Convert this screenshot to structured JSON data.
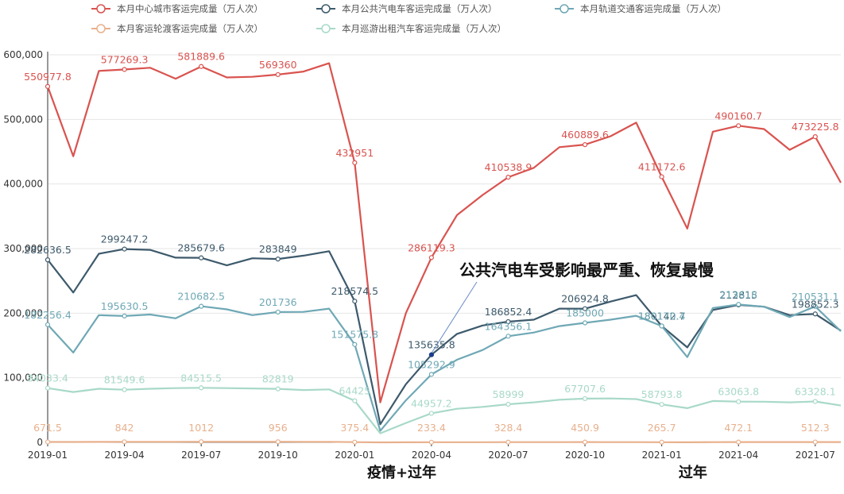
{
  "chart_data": {
    "type": "line",
    "x": [
      "2019-01",
      "2019-02",
      "2019-03",
      "2019-04",
      "2019-05",
      "2019-06",
      "2019-07",
      "2019-08",
      "2019-09",
      "2019-10",
      "2019-11",
      "2019-12",
      "2020-01",
      "2020-02",
      "2020-03",
      "2020-04",
      "2020-05",
      "2020-06",
      "2020-07",
      "2020-08",
      "2020-09",
      "2020-10",
      "2020-11",
      "2020-12",
      "2021-01",
      "2021-02",
      "2021-03",
      "2021-04",
      "2021-05",
      "2021-06",
      "2021-07",
      "2021-08"
    ],
    "x_ticks": [
      "2019-01",
      "2019-04",
      "2019-07",
      "2019-10",
      "2020-01",
      "2020-04",
      "2020-07",
      "2020-10",
      "2021-01",
      "2021-04",
      "2021-07"
    ],
    "y_ticks": [
      "0",
      "100,000",
      "200,000",
      "300,000",
      "400,000",
      "500,000",
      "600,000"
    ],
    "ylim": [
      0,
      600000
    ],
    "legend_position": "top",
    "series": [
      {
        "name": "本月中心城市客运完成量（万人次）",
        "color": "#d9534f",
        "values": [
          550977.8,
          443000,
          575000,
          577269.3,
          580000,
          563000,
          581889.6,
          565000,
          566000,
          569360,
          574000,
          587000,
          432951,
          62000,
          200000,
          286119.3,
          352000,
          383000,
          410538.9,
          425000,
          457000,
          460889.6,
          474000,
          495000,
          411172.6,
          331000,
          481000,
          490160.7,
          485000,
          453000,
          473225.8,
          402000
        ]
      },
      {
        "name": "本月公共汽电车客运完成量（万人次）",
        "color": "#3d5a6c",
        "values": [
          282636.5,
          232000,
          292000,
          299247.2,
          298000,
          286000,
          285679.6,
          274000,
          285000,
          283849,
          289000,
          296000,
          218574.5,
          28000,
          90000,
          135635.8,
          168000,
          181000,
          186852.4,
          190000,
          207000,
          206924.8,
          218000,
          228000,
          180142.7,
          147000,
          205000,
          212815,
          210000,
          197000,
          198852.3,
          173000
        ]
      },
      {
        "name": "本月轨道交通客运完成量（万人次）",
        "color": "#6fa8b5",
        "values": [
          182256.4,
          139000,
          197000,
          195630.5,
          198000,
          192000,
          210682.5,
          206000,
          197000,
          201736,
          202000,
          207000,
          151575.8,
          18000,
          65000,
          105292.9,
          128000,
          143000,
          164356.1,
          170000,
          180000,
          185000,
          190000,
          196000,
          180170.4,
          132000,
          208000,
          213618,
          210000,
          194000,
          210531.1,
          172000
        ]
      },
      {
        "name": "本月客运轮渡客运完成量（万人次）",
        "color": "#e8b08d",
        "values": [
          671.5,
          600,
          780,
          842,
          880,
          900,
          1012,
          980,
          950,
          956,
          920,
          900,
          375.4,
          60,
          150,
          233.4,
          280,
          300,
          328.4,
          360,
          410,
          450.9,
          430,
          380,
          265.7,
          180,
          420,
          472.1,
          480,
          500,
          512.3,
          450
        ]
      },
      {
        "name": "本月巡游出租汽车客运完成量（万人次）",
        "color": "#a8d9c8",
        "values": [
          84033.4,
          78000,
          83000,
          81549.6,
          83000,
          84000,
          84515.5,
          84000,
          83500,
          82819,
          81000,
          82000,
          64425,
          14000,
          30000,
          44957.2,
          52000,
          55000,
          58999,
          62000,
          66000,
          67707.6,
          68000,
          67000,
          58793.8,
          53000,
          64000,
          63063.8,
          63000,
          62000,
          63328.1,
          57000
        ]
      }
    ],
    "data_labels": [
      {
        "series": 0,
        "index": 0,
        "text": "550977.8"
      },
      {
        "series": 0,
        "index": 3,
        "text": "577269.3"
      },
      {
        "series": 0,
        "index": 6,
        "text": "581889.6"
      },
      {
        "series": 0,
        "index": 9,
        "text": "569360"
      },
      {
        "series": 0,
        "index": 12,
        "text": "432951"
      },
      {
        "series": 0,
        "index": 15,
        "text": "286119.3"
      },
      {
        "series": 0,
        "index": 18,
        "text": "410538.9"
      },
      {
        "series": 0,
        "index": 21,
        "text": "460889.6"
      },
      {
        "series": 0,
        "index": 24,
        "text": "411172.6"
      },
      {
        "series": 0,
        "index": 27,
        "text": "490160.7"
      },
      {
        "series": 0,
        "index": 30,
        "text": "473225.8"
      },
      {
        "series": 1,
        "index": 0,
        "text": "282636.5"
      },
      {
        "series": 1,
        "index": 3,
        "text": "299247.2"
      },
      {
        "series": 1,
        "index": 6,
        "text": "285679.6"
      },
      {
        "series": 1,
        "index": 9,
        "text": "283849"
      },
      {
        "series": 1,
        "index": 12,
        "text": "218574.5"
      },
      {
        "series": 1,
        "index": 15,
        "text": "135635.8"
      },
      {
        "series": 1,
        "index": 18,
        "text": "186852.4"
      },
      {
        "series": 1,
        "index": 21,
        "text": "206924.8"
      },
      {
        "series": 1,
        "index": 24,
        "text": "180142.7"
      },
      {
        "series": 1,
        "index": 27,
        "text": "212815"
      },
      {
        "series": 1,
        "index": 30,
        "text": "198852.3"
      },
      {
        "series": 2,
        "index": 0,
        "text": "182256.4"
      },
      {
        "series": 2,
        "index": 3,
        "text": "195630.5"
      },
      {
        "series": 2,
        "index": 6,
        "text": "210682.5"
      },
      {
        "series": 2,
        "index": 9,
        "text": "201736"
      },
      {
        "series": 2,
        "index": 12,
        "text": "151575.8"
      },
      {
        "series": 2,
        "index": 15,
        "text": "105292.9"
      },
      {
        "series": 2,
        "index": 18,
        "text": "164356.1"
      },
      {
        "series": 2,
        "index": 21,
        "text": "185000"
      },
      {
        "series": 2,
        "index": 24,
        "text": "180170.4"
      },
      {
        "series": 2,
        "index": 27,
        "text": "213618"
      },
      {
        "series": 2,
        "index": 30,
        "text": "210531.1"
      },
      {
        "series": 3,
        "index": 0,
        "text": "671.5"
      },
      {
        "series": 3,
        "index": 3,
        "text": "842"
      },
      {
        "series": 3,
        "index": 6,
        "text": "1012"
      },
      {
        "series": 3,
        "index": 9,
        "text": "956"
      },
      {
        "series": 3,
        "index": 12,
        "text": "375.4"
      },
      {
        "series": 3,
        "index": 15,
        "text": "233.4"
      },
      {
        "series": 3,
        "index": 18,
        "text": "328.4"
      },
      {
        "series": 3,
        "index": 21,
        "text": "450.9"
      },
      {
        "series": 3,
        "index": 24,
        "text": "265.7"
      },
      {
        "series": 3,
        "index": 27,
        "text": "472.1"
      },
      {
        "series": 3,
        "index": 30,
        "text": "512.3"
      },
      {
        "series": 4,
        "index": 0,
        "text": "84033.4"
      },
      {
        "series": 4,
        "index": 3,
        "text": "81549.6"
      },
      {
        "series": 4,
        "index": 6,
        "text": "84515.5"
      },
      {
        "series": 4,
        "index": 9,
        "text": "82819"
      },
      {
        "series": 4,
        "index": 12,
        "text": "64425"
      },
      {
        "series": 4,
        "index": 15,
        "text": "44957.2"
      },
      {
        "series": 4,
        "index": 18,
        "text": "58999"
      },
      {
        "series": 4,
        "index": 21,
        "text": "67707.6"
      },
      {
        "series": 4,
        "index": 24,
        "text": "58793.8"
      },
      {
        "series": 4,
        "index": 27,
        "text": "63063.8"
      },
      {
        "series": 4,
        "index": 30,
        "text": "63328.1"
      }
    ],
    "annotations": [
      {
        "text": "公共汽电车受影响最严重、恢复最慢",
        "x": "2020-04",
        "y": 135635.8
      },
      {
        "text": "疫情+过年",
        "x": "2020-02",
        "y": 0
      },
      {
        "text": "过年",
        "x": "2021-02",
        "y": 0
      }
    ]
  }
}
